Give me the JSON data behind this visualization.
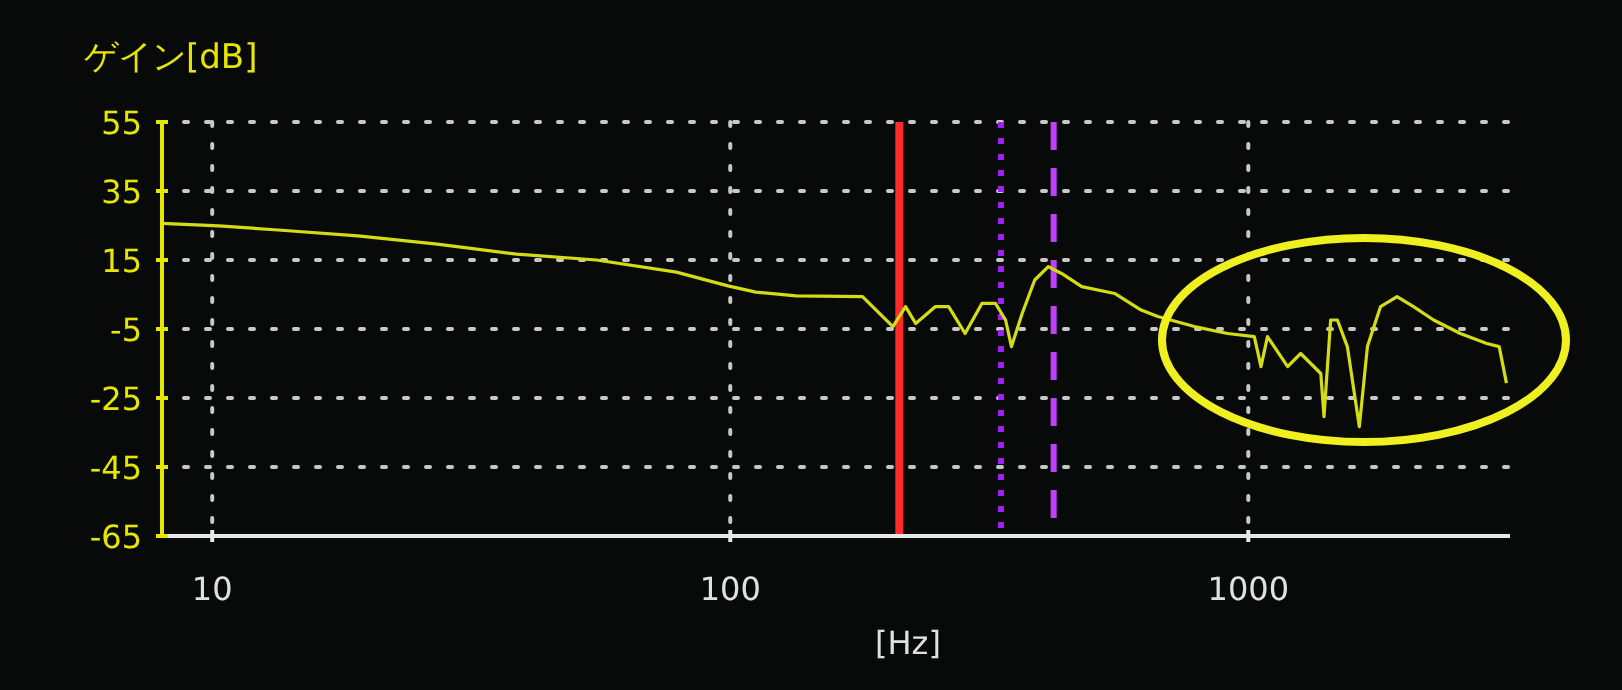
{
  "chart_data": {
    "type": "line",
    "ylabel": "ゲイン[dB]",
    "xlabel": "[Hz]",
    "log": "x",
    "grid": true,
    "x": [
      8,
      10.3,
      13.4,
      19.1,
      27.2,
      38.7,
      55.2,
      78.7,
      99,
      112,
      134,
      180,
      206,
      218,
      228,
      249,
      264,
      284,
      306,
      325,
      340,
      349,
      366,
      387,
      411,
      436,
      477,
      552,
      621,
      669,
      787,
      912,
      1027,
      1058,
      1089,
      1122,
      1191,
      1262,
      1380,
      1400,
      1442,
      1486,
      1553,
      1638,
      1698,
      1800,
      1937,
      2084,
      2279,
      2566,
      2886,
      3050,
      3150
    ],
    "series": [
      {
        "color": "#d4dc14",
        "values": [
          25.6,
          24.9,
          23.7,
          22,
          19.6,
          16.7,
          15,
          11.5,
          7.5,
          5.7,
          4.6,
          4.4,
          -4.3,
          1.5,
          -3.4,
          1.5,
          1.5,
          -6.3,
          2.4,
          2.4,
          -2.4,
          -10.1,
          -0.5,
          9.2,
          13.1,
          11.1,
          7.3,
          5.3,
          0.5,
          -1.4,
          -4.3,
          -6.3,
          -7.2,
          -15.9,
          -7.2,
          -10.1,
          -15.9,
          -12.1,
          -17.9,
          -30.4,
          -2.4,
          -2.4,
          -10.1,
          -33.3,
          -10.1,
          1.5,
          4.4,
          1.5,
          -2.4,
          -6.3,
          -9.2,
          -10.1,
          -20.7
        ]
      }
    ],
    "xlim": [
      8,
      3200
    ],
    "ylim": [
      -65,
      55
    ],
    "xticks": [
      10,
      100,
      1000
    ],
    "yticks": [
      -65,
      -45,
      -25,
      -5,
      15,
      35,
      55
    ],
    "ref_lines": [
      {
        "axis": "x",
        "value": 212,
        "color": "#ff2a2a",
        "line_style": "solid"
      },
      {
        "axis": "x",
        "value": 333,
        "color": "#a020f0",
        "line_style": "dotted"
      },
      {
        "axis": "x",
        "value": 421,
        "color": "#c040ff",
        "line_style": "dashed"
      }
    ]
  }
}
